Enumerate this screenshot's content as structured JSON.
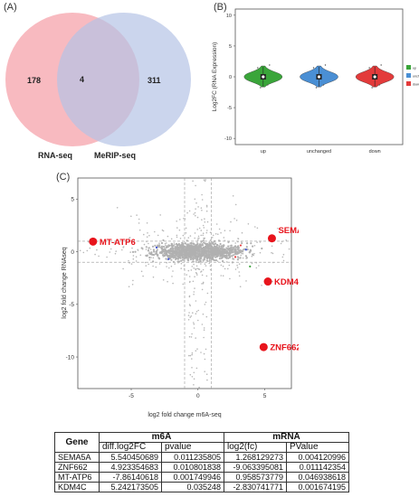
{
  "panels": {
    "a": "(A)",
    "b": "(B)",
    "c": "(C)"
  },
  "venn": {
    "left_label": "RNA-seq",
    "right_label": "MeRIP-seq",
    "left_only": "178",
    "overlap": "4",
    "right_only": "311",
    "colors": {
      "left": "#f6a3ab",
      "right": "#b5c3e6"
    }
  },
  "chart_data": [
    {
      "type": "violin",
      "ylabel": "Log2FC (RNA Expression)",
      "categories": [
        "up",
        "unchanged",
        "down"
      ],
      "yticks": [
        "-10",
        "-5",
        "0",
        "5",
        "10"
      ],
      "ylim": [
        -11,
        11
      ],
      "median": [
        0.0,
        0.0,
        0.0
      ],
      "colors": [
        "#3aa53a",
        "#4a8fd4",
        "#e33b3b"
      ],
      "legend": [
        "up",
        "unchanged",
        "down"
      ],
      "legend_position": "right"
    },
    {
      "type": "scatter",
      "xlabel": "log2 fold change m6A-seq",
      "ylabel": "log2 fold change RNAseq",
      "xlim": [
        -9,
        7
      ],
      "ylim": [
        -13,
        7
      ],
      "xticks": [
        "-5",
        "0",
        "5"
      ],
      "yticks": [
        "-10",
        "-5",
        "0",
        "5"
      ],
      "grid": true,
      "highlighted": [
        {
          "label": "SEMA5A",
          "x": 5.54,
          "y": 1.27
        },
        {
          "label": "ZNF662",
          "x": 4.92,
          "y": -9.06
        },
        {
          "label": "MT-ATP6",
          "x": -7.86,
          "y": 0.96
        },
        {
          "label": "KDM4C",
          "x": 5.24,
          "y": -2.83
        }
      ],
      "highlight_color": "#e8141c"
    }
  ],
  "table": {
    "group_gene": "Gene",
    "group_m6a": "m6A",
    "group_mrna": "mRNA",
    "subheaders": [
      "diff.log2FC",
      "pvalue",
      "log2(fc)",
      "PValue"
    ],
    "rows": [
      {
        "gene": "SEMA5A",
        "c1": "5.540450689",
        "c2": "0.011235805",
        "c3": "1.268129273",
        "c4": "0.004120996"
      },
      {
        "gene": "ZNF662",
        "c1": "4.923354683",
        "c2": "0.010801838",
        "c3": "-9.063395081",
        "c4": "0.011142354"
      },
      {
        "gene": "MT-ATP6",
        "c1": "-7.86140618",
        "c2": "0.001749946",
        "c3": "0.958573779",
        "c4": "0.046938618"
      },
      {
        "gene": "KDM4C",
        "c1": "5.242173505",
        "c2": "0.035248",
        "c3": "-2.830741771",
        "c4": "0.001674195"
      }
    ]
  }
}
